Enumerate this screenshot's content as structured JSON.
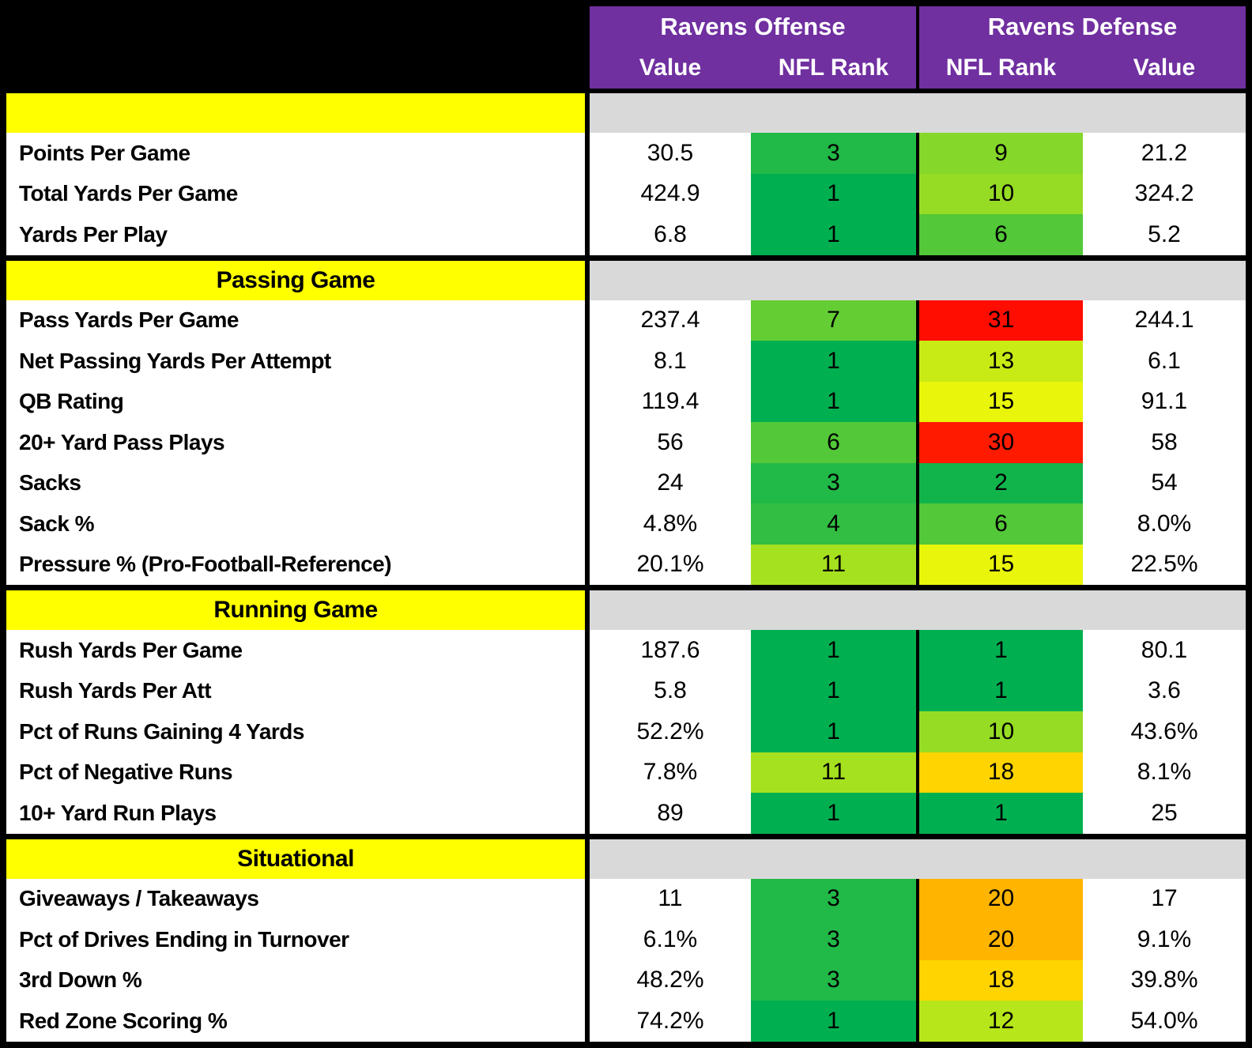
{
  "header": {
    "offense_title": "Ravens Offense",
    "defense_title": "Ravens Defense",
    "offense_value_label": "Value",
    "offense_rank_label": "NFL Rank",
    "defense_rank_label": "NFL Rank",
    "defense_value_label": "Value"
  },
  "colors": {
    "purple": "#7030A0",
    "yellow": "#FFFF00",
    "gray": "#D9D9D9",
    "black": "#000000",
    "white": "#FFFFFF",
    "rank_scale_green": "#00B050",
    "rank_scale_yellow": "#FFFF00",
    "rank_scale_red": "#FF0000"
  },
  "chart_data": {
    "type": "table",
    "columns": [
      "Metric",
      "Offense Value",
      "Offense NFL Rank",
      "Defense NFL Rank",
      "Defense Value"
    ],
    "sections": [
      {
        "title": "",
        "rows": [
          {
            "label": "Points Per Game",
            "off_value": "30.5",
            "off_rank": "3",
            "off_rank_color": "#21B947",
            "def_rank": "9",
            "def_rank_color": "#85D729",
            "def_value": "21.2"
          },
          {
            "label": "Total Yards Per Game",
            "off_value": "424.9",
            "off_rank": "1",
            "off_rank_color": "#00B050",
            "def_rank": "10",
            "def_rank_color": "#96DC24",
            "def_value": "324.2"
          },
          {
            "label": "Yards Per Play",
            "off_value": "6.8",
            "off_rank": "1",
            "off_rank_color": "#00B050",
            "def_rank": "6",
            "def_rank_color": "#53C838",
            "def_value": "5.2"
          }
        ]
      },
      {
        "title": "Passing Game",
        "rows": [
          {
            "label": "Pass Yards Per Game",
            "off_value": "237.4",
            "off_rank": "7",
            "off_rank_color": "#64CD33",
            "def_rank": "31",
            "def_rank_color": "#FF0D00",
            "def_value": "244.1"
          },
          {
            "label": "Net Passing Yards Per Attempt",
            "off_value": "8.1",
            "off_rank": "1",
            "off_rank_color": "#00B050",
            "def_rank": "13",
            "def_rank_color": "#C8EB15",
            "def_value": "6.1"
          },
          {
            "label": "QB Rating",
            "off_value": "119.4",
            "off_rank": "1",
            "off_rank_color": "#00B050",
            "def_rank": "15",
            "def_rank_color": "#E9F50B",
            "def_value": "91.1"
          },
          {
            "label": "20+ Yard Pass Plays",
            "off_value": "56",
            "off_rank": "6",
            "off_rank_color": "#53C838",
            "def_rank": "30",
            "def_rank_color": "#FF1A00",
            "def_value": "58"
          },
          {
            "label": "Sacks",
            "off_value": "24",
            "off_rank": "3",
            "off_rank_color": "#21B947",
            "def_rank": "2",
            "def_rank_color": "#11B44B",
            "def_value": "54"
          },
          {
            "label": "Sack %",
            "off_value": "4.8%",
            "off_rank": "4",
            "off_rank_color": "#32BE42",
            "def_rank": "6",
            "def_rank_color": "#53C838",
            "def_value": "8.0%"
          },
          {
            "label": "Pressure % (Pro-Football-Reference)",
            "off_value": "20.1%",
            "off_rank": "11",
            "off_rank_color": "#A6E11F",
            "def_rank": "15",
            "def_rank_color": "#E9F50B",
            "def_value": "22.5%"
          }
        ]
      },
      {
        "title": "Running Game",
        "rows": [
          {
            "label": "Rush Yards Per Game",
            "off_value": "187.6",
            "off_rank": "1",
            "off_rank_color": "#00B050",
            "def_rank": "1",
            "def_rank_color": "#00B050",
            "def_value": "80.1"
          },
          {
            "label": "Rush Yards Per Att",
            "off_value": "5.8",
            "off_rank": "1",
            "off_rank_color": "#00B050",
            "def_rank": "1",
            "def_rank_color": "#00B050",
            "def_value": "3.6"
          },
          {
            "label": "Pct of Runs Gaining 4 Yards",
            "off_value": "52.2%",
            "off_rank": "1",
            "off_rank_color": "#00B050",
            "def_rank": "10",
            "def_rank_color": "#96DC24",
            "def_value": "43.6%"
          },
          {
            "label": "Pct of Negative Runs",
            "off_value": "7.8%",
            "off_rank": "11",
            "off_rank_color": "#A6E11F",
            "def_rank": "18",
            "def_rank_color": "#FFD400",
            "def_value": "8.1%"
          },
          {
            "label": "10+ Yard Run Plays",
            "off_value": "89",
            "off_rank": "1",
            "off_rank_color": "#00B050",
            "def_rank": "1",
            "def_rank_color": "#00B050",
            "def_value": "25"
          }
        ]
      },
      {
        "title": "Situational",
        "rows": [
          {
            "label": "Giveaways / Takeaways",
            "off_value": "11",
            "off_rank": "3",
            "off_rank_color": "#21B947",
            "def_rank": "20",
            "def_rank_color": "#FFB400",
            "def_value": "17"
          },
          {
            "label": "Pct of Drives Ending in Turnover",
            "off_value": "6.1%",
            "off_rank": "3",
            "off_rank_color": "#21B947",
            "def_rank": "20",
            "def_rank_color": "#FFB400",
            "def_value": "9.1%"
          },
          {
            "label": "3rd Down %",
            "off_value": "48.2%",
            "off_rank": "3",
            "off_rank_color": "#21B947",
            "def_rank": "18",
            "def_rank_color": "#FFD400",
            "def_value": "39.8%"
          },
          {
            "label": "Red Zone Scoring %",
            "off_value": "74.2%",
            "off_rank": "1",
            "off_rank_color": "#00B050",
            "def_rank": "12",
            "def_rank_color": "#B7E61A",
            "def_value": "54.0%"
          }
        ]
      }
    ]
  }
}
